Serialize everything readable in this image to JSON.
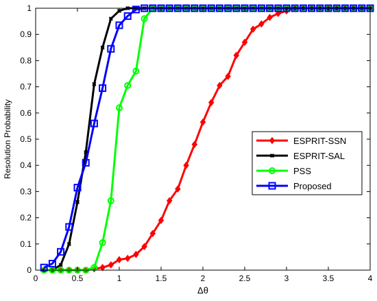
{
  "chart_data": {
    "type": "line",
    "title": "",
    "xlabel": "Δθ",
    "ylabel": "Resolution Probability",
    "xlim": [
      0,
      4
    ],
    "ylim": [
      0,
      1
    ],
    "grid": false,
    "legend_position": "center-right",
    "x_ticks": [
      "0",
      "0.5",
      "1",
      "1.5",
      "2",
      "2.5",
      "3",
      "3.5",
      "4"
    ],
    "y_ticks": [
      "0",
      "0.1",
      "0.2",
      "0.3",
      "0.4",
      "0.5",
      "0.6",
      "0.7",
      "0.8",
      "0.9",
      "1"
    ],
    "x": [
      0.1,
      0.2,
      0.3,
      0.4,
      0.5,
      0.6,
      0.7,
      0.8,
      0.9,
      1.0,
      1.1,
      1.2,
      1.3,
      1.4,
      1.5,
      1.6,
      1.7,
      1.8,
      1.9,
      2.0,
      2.1,
      2.2,
      2.3,
      2.4,
      2.5,
      2.6,
      2.7,
      2.8,
      2.9,
      3.0,
      3.1,
      3.2,
      3.3,
      3.4,
      3.5,
      3.6,
      3.7,
      3.8,
      3.9,
      4.0
    ],
    "series": [
      {
        "name": "ESPRIT-SSN",
        "color": "#ff0000",
        "marker": "diamond",
        "values": [
          0,
          0,
          0,
          0,
          0,
          0,
          0.005,
          0.01,
          0.02,
          0.04,
          0.045,
          0.06,
          0.09,
          0.14,
          0.19,
          0.265,
          0.31,
          0.4,
          0.48,
          0.565,
          0.64,
          0.705,
          0.74,
          0.82,
          0.87,
          0.92,
          0.94,
          0.965,
          0.98,
          0.99,
          1,
          1,
          1,
          1,
          1,
          1,
          1,
          1,
          1,
          1
        ]
      },
      {
        "name": "ESPRIT-SAL",
        "color": "#000000",
        "marker": "x",
        "values": [
          0,
          0,
          0.02,
          0.1,
          0.26,
          0.45,
          0.71,
          0.85,
          0.96,
          0.99,
          1,
          1,
          1,
          1,
          1,
          1,
          1,
          1,
          1,
          1,
          1,
          1,
          1,
          1,
          1,
          1,
          1,
          1,
          1,
          1,
          1,
          1,
          1,
          1,
          1,
          1,
          1,
          1,
          1,
          1
        ]
      },
      {
        "name": "PSS",
        "color": "#00ff00",
        "marker": "circle",
        "values": [
          0,
          0,
          0,
          0,
          0,
          0,
          0.01,
          0.105,
          0.265,
          0.62,
          0.705,
          0.76,
          0.96,
          1,
          1,
          1,
          1,
          1,
          1,
          1,
          1,
          1,
          1,
          1,
          1,
          1,
          1,
          1,
          1,
          1,
          1,
          1,
          1,
          1,
          1,
          1,
          1,
          1,
          1,
          1
        ]
      },
      {
        "name": "Proposed",
        "color": "#0000ff",
        "marker": "square",
        "values": [
          0.01,
          0.025,
          0.07,
          0.165,
          0.315,
          0.41,
          0.56,
          0.695,
          0.845,
          0.935,
          0.97,
          0.995,
          1,
          1,
          1,
          1,
          1,
          1,
          1,
          1,
          1,
          1,
          1,
          1,
          1,
          1,
          1,
          1,
          1,
          1,
          1,
          1,
          1,
          1,
          1,
          1,
          1,
          1,
          1,
          1
        ]
      }
    ]
  }
}
